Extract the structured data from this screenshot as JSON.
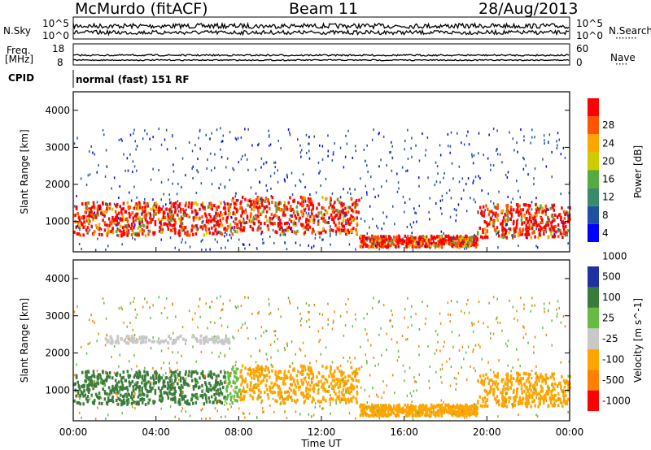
{
  "header": {
    "station": "McMurdo (fitACF)",
    "beam": "Beam 11",
    "date": "28/Aug/2013"
  },
  "noise_panel": {
    "left_label": "N.Sky",
    "left_ticks": [
      "10^5",
      "10^0"
    ],
    "right_label": "N.Search",
    "right_ticks": [
      "10^5",
      "10^0"
    ]
  },
  "freq_panel": {
    "left_label_1": "Freq.",
    "left_label_2": "[MHz]",
    "left_ticks": [
      "18",
      "8"
    ],
    "right_label": "Nave",
    "right_ticks": [
      "60",
      "0"
    ]
  },
  "cpid": {
    "label": "CPID",
    "value": "normal (fast) 151 RF"
  },
  "colors": {
    "power_scale": [
      "#0000ff",
      "#2050a0",
      "#3a8a6a",
      "#55aa40",
      "#cccc00",
      "#ffa500",
      "#ff5500",
      "#ff0000"
    ],
    "velocity_scale": [
      "#2030a0",
      "#3a7a3a",
      "#66bb44",
      "#c8c8c8",
      "#ffa500",
      "#ff8000",
      "#ff0000"
    ]
  },
  "chart_data": [
    {
      "type": "heatmap",
      "title": "",
      "xlabel": "",
      "ylabel": "Slant Range [km]",
      "x_ticks": [
        "00:00",
        "04:00",
        "08:00",
        "12:00",
        "16:00",
        "20:00",
        "00:00"
      ],
      "xlim": [
        0,
        24
      ],
      "ylim": [
        180,
        4500
      ],
      "y_ticks": [
        1000,
        2000,
        3000,
        4000
      ],
      "colorbar_label": "Power [dB]",
      "colorbar_ticks": [
        4,
        8,
        12,
        16,
        20,
        24,
        28
      ],
      "colorbar_range": [
        0,
        30
      ]
    },
    {
      "type": "heatmap",
      "title": "",
      "xlabel": "Time UT",
      "ylabel": "Slant Range [km]",
      "x_ticks": [
        "00:00",
        "04:00",
        "08:00",
        "12:00",
        "16:00",
        "20:00",
        "00:00"
      ],
      "xlim": [
        0,
        24
      ],
      "ylim": [
        180,
        4500
      ],
      "y_ticks": [
        1000,
        2000,
        3000,
        4000
      ],
      "colorbar_label": "Velocity [m s^-1]",
      "colorbar_ticks": [
        "1000",
        "500",
        "100",
        "25",
        "-25",
        "-100",
        "-500",
        "-1000"
      ]
    }
  ]
}
